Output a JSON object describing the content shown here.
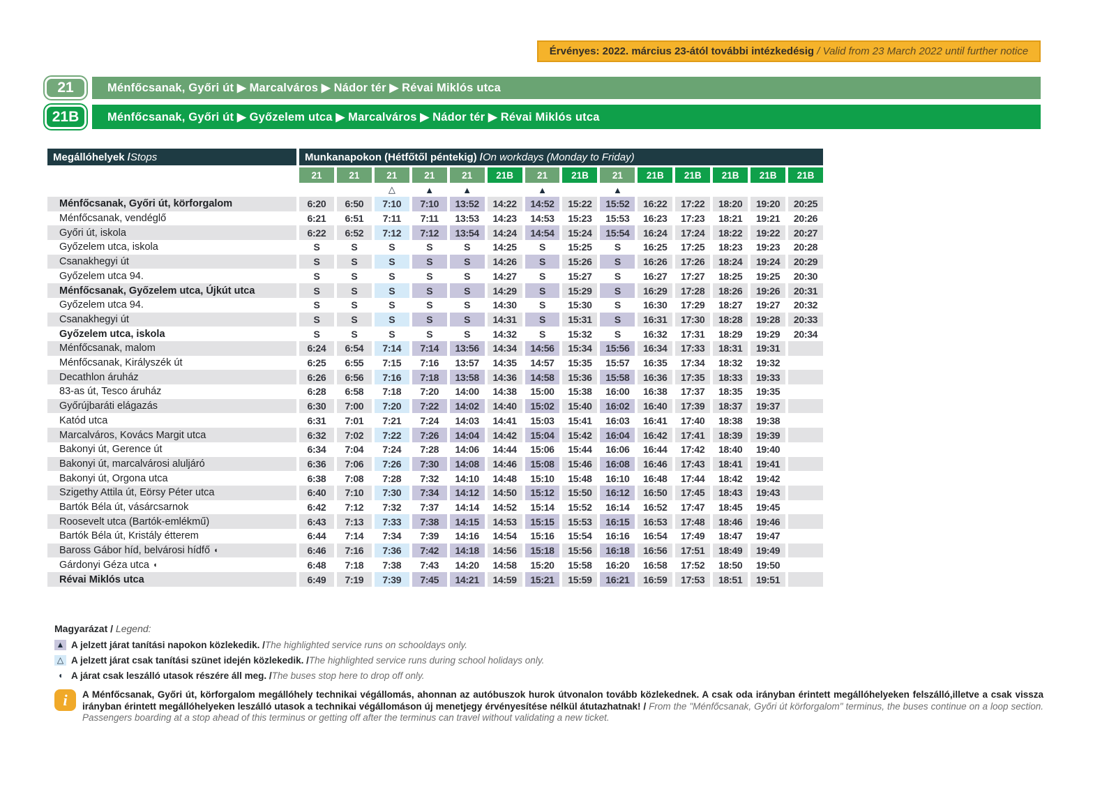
{
  "validity": {
    "hu": "Érvényes: 2022. március 23-ától további intézkedésig",
    "en": "Valid from 23 March 2022 until further notice"
  },
  "routes": [
    {
      "badge": "21",
      "destination": "Ménfőcsanak, Győri út ▶ Marcalváros ▶ Nádor tér ▶ Révai Miklós utca"
    },
    {
      "badge": "21B",
      "destination": "Ménfőcsanak, Győri út ▶ Győzelem utca ▶ Marcalváros ▶ Nádor tér ▶ Révai Miklós utca"
    }
  ],
  "table": {
    "stops_header_hu": "Megállóhelyek /",
    "stops_header_en": " Stops",
    "days_header_hu": "Munkanapokon (Hétfőtől péntekig) /",
    "days_header_en": " On workdays (Monday to Friday)",
    "columns": [
      {
        "route": "21",
        "symbol": ""
      },
      {
        "route": "21",
        "symbol": ""
      },
      {
        "route": "21",
        "symbol": "△"
      },
      {
        "route": "21",
        "symbol": "▲"
      },
      {
        "route": "21",
        "symbol": "▲"
      },
      {
        "route": "21B",
        "symbol": ""
      },
      {
        "route": "21",
        "symbol": "▲"
      },
      {
        "route": "21B",
        "symbol": ""
      },
      {
        "route": "21",
        "symbol": "▲"
      },
      {
        "route": "21B",
        "symbol": ""
      },
      {
        "route": "21B",
        "symbol": ""
      },
      {
        "route": "21B",
        "symbol": ""
      },
      {
        "route": "21B",
        "symbol": ""
      },
      {
        "route": "21B",
        "symbol": ""
      }
    ],
    "rows": [
      {
        "stop": "Ménfőcsanak, Győri út, körforgalom",
        "bold": true,
        "dropoff": false,
        "times": [
          "6:20",
          "6:50",
          "7:10",
          "7:10",
          "13:52",
          "14:22",
          "14:52",
          "15:22",
          "15:52",
          "16:22",
          "17:22",
          "18:20",
          "19:20",
          "20:25"
        ]
      },
      {
        "stop": "Ménfőcsanak, vendéglő",
        "bold": false,
        "dropoff": false,
        "times": [
          "6:21",
          "6:51",
          "7:11",
          "7:11",
          "13:53",
          "14:23",
          "14:53",
          "15:23",
          "15:53",
          "16:23",
          "17:23",
          "18:21",
          "19:21",
          "20:26"
        ]
      },
      {
        "stop": "Győri út, iskola",
        "bold": false,
        "dropoff": false,
        "times": [
          "6:22",
          "6:52",
          "7:12",
          "7:12",
          "13:54",
          "14:24",
          "14:54",
          "15:24",
          "15:54",
          "16:24",
          "17:24",
          "18:22",
          "19:22",
          "20:27"
        ]
      },
      {
        "stop": "Győzelem utca, iskola",
        "bold": false,
        "dropoff": false,
        "times": [
          "S",
          "S",
          "S",
          "S",
          "S",
          "14:25",
          "S",
          "15:25",
          "S",
          "16:25",
          "17:25",
          "18:23",
          "19:23",
          "20:28"
        ]
      },
      {
        "stop": "Csanakhegyi út",
        "bold": false,
        "dropoff": false,
        "times": [
          "S",
          "S",
          "S",
          "S",
          "S",
          "14:26",
          "S",
          "15:26",
          "S",
          "16:26",
          "17:26",
          "18:24",
          "19:24",
          "20:29"
        ]
      },
      {
        "stop": "Győzelem utca 94.",
        "bold": false,
        "dropoff": false,
        "times": [
          "S",
          "S",
          "S",
          "S",
          "S",
          "14:27",
          "S",
          "15:27",
          "S",
          "16:27",
          "17:27",
          "18:25",
          "19:25",
          "20:30"
        ]
      },
      {
        "stop": "Ménfőcsanak, Győzelem utca, Újkút utca",
        "bold": true,
        "dropoff": false,
        "times": [
          "S",
          "S",
          "S",
          "S",
          "S",
          "14:29",
          "S",
          "15:29",
          "S",
          "16:29",
          "17:28",
          "18:26",
          "19:26",
          "20:31"
        ]
      },
      {
        "stop": "Győzelem utca 94.",
        "bold": false,
        "dropoff": false,
        "times": [
          "S",
          "S",
          "S",
          "S",
          "S",
          "14:30",
          "S",
          "15:30",
          "S",
          "16:30",
          "17:29",
          "18:27",
          "19:27",
          "20:32"
        ]
      },
      {
        "stop": "Csanakhegyi út",
        "bold": false,
        "dropoff": false,
        "times": [
          "S",
          "S",
          "S",
          "S",
          "S",
          "14:31",
          "S",
          "15:31",
          "S",
          "16:31",
          "17:30",
          "18:28",
          "19:28",
          "20:33"
        ]
      },
      {
        "stop": "Győzelem utca, iskola",
        "bold": true,
        "dropoff": false,
        "times": [
          "S",
          "S",
          "S",
          "S",
          "S",
          "14:32",
          "S",
          "15:32",
          "S",
          "16:32",
          "17:31",
          "18:29",
          "19:29",
          "20:34"
        ]
      },
      {
        "stop": "Ménfőcsanak, malom",
        "bold": false,
        "dropoff": false,
        "times": [
          "6:24",
          "6:54",
          "7:14",
          "7:14",
          "13:56",
          "14:34",
          "14:56",
          "15:34",
          "15:56",
          "16:34",
          "17:33",
          "18:31",
          "19:31",
          ""
        ]
      },
      {
        "stop": "Ménfőcsanak, Királyszék út",
        "bold": false,
        "dropoff": false,
        "times": [
          "6:25",
          "6:55",
          "7:15",
          "7:16",
          "13:57",
          "14:35",
          "14:57",
          "15:35",
          "15:57",
          "16:35",
          "17:34",
          "18:32",
          "19:32",
          ""
        ]
      },
      {
        "stop": "Decathlon áruház",
        "bold": false,
        "dropoff": false,
        "times": [
          "6:26",
          "6:56",
          "7:16",
          "7:18",
          "13:58",
          "14:36",
          "14:58",
          "15:36",
          "15:58",
          "16:36",
          "17:35",
          "18:33",
          "19:33",
          ""
        ]
      },
      {
        "stop": "83-as út, Tesco áruház",
        "bold": false,
        "dropoff": false,
        "times": [
          "6:28",
          "6:58",
          "7:18",
          "7:20",
          "14:00",
          "14:38",
          "15:00",
          "15:38",
          "16:00",
          "16:38",
          "17:37",
          "18:35",
          "19:35",
          ""
        ]
      },
      {
        "stop": "Győrújbaráti elágazás",
        "bold": false,
        "dropoff": false,
        "times": [
          "6:30",
          "7:00",
          "7:20",
          "7:22",
          "14:02",
          "14:40",
          "15:02",
          "15:40",
          "16:02",
          "16:40",
          "17:39",
          "18:37",
          "19:37",
          ""
        ]
      },
      {
        "stop": "Katód utca",
        "bold": false,
        "dropoff": false,
        "times": [
          "6:31",
          "7:01",
          "7:21",
          "7:24",
          "14:03",
          "14:41",
          "15:03",
          "15:41",
          "16:03",
          "16:41",
          "17:40",
          "18:38",
          "19:38",
          ""
        ]
      },
      {
        "stop": "Marcalváros, Kovács Margit utca",
        "bold": false,
        "dropoff": false,
        "times": [
          "6:32",
          "7:02",
          "7:22",
          "7:26",
          "14:04",
          "14:42",
          "15:04",
          "15:42",
          "16:04",
          "16:42",
          "17:41",
          "18:39",
          "19:39",
          ""
        ]
      },
      {
        "stop": "Bakonyi út, Gerence út",
        "bold": false,
        "dropoff": false,
        "times": [
          "6:34",
          "7:04",
          "7:24",
          "7:28",
          "14:06",
          "14:44",
          "15:06",
          "15:44",
          "16:06",
          "16:44",
          "17:42",
          "18:40",
          "19:40",
          ""
        ]
      },
      {
        "stop": "Bakonyi út, marcalvárosi aluljáró",
        "bold": false,
        "dropoff": false,
        "times": [
          "6:36",
          "7:06",
          "7:26",
          "7:30",
          "14:08",
          "14:46",
          "15:08",
          "15:46",
          "16:08",
          "16:46",
          "17:43",
          "18:41",
          "19:41",
          ""
        ]
      },
      {
        "stop": "Bakonyi út, Orgona utca",
        "bold": false,
        "dropoff": false,
        "times": [
          "6:38",
          "7:08",
          "7:28",
          "7:32",
          "14:10",
          "14:48",
          "15:10",
          "15:48",
          "16:10",
          "16:48",
          "17:44",
          "18:42",
          "19:42",
          ""
        ]
      },
      {
        "stop": "Szigethy Attila út, Eörsy Péter utca",
        "bold": false,
        "dropoff": false,
        "times": [
          "6:40",
          "7:10",
          "7:30",
          "7:34",
          "14:12",
          "14:50",
          "15:12",
          "15:50",
          "16:12",
          "16:50",
          "17:45",
          "18:43",
          "19:43",
          ""
        ]
      },
      {
        "stop": "Bartók Béla út, vásárcsarnok",
        "bold": false,
        "dropoff": false,
        "times": [
          "6:42",
          "7:12",
          "7:32",
          "7:37",
          "14:14",
          "14:52",
          "15:14",
          "15:52",
          "16:14",
          "16:52",
          "17:47",
          "18:45",
          "19:45",
          ""
        ]
      },
      {
        "stop": "Roosevelt utca (Bartók-emlékmű)",
        "bold": false,
        "dropoff": false,
        "times": [
          "6:43",
          "7:13",
          "7:33",
          "7:38",
          "14:15",
          "14:53",
          "15:15",
          "15:53",
          "16:15",
          "16:53",
          "17:48",
          "18:46",
          "19:46",
          ""
        ]
      },
      {
        "stop": "Bartók Béla út, Kristály étterem",
        "bold": false,
        "dropoff": false,
        "times": [
          "6:44",
          "7:14",
          "7:34",
          "7:39",
          "14:16",
          "14:54",
          "15:16",
          "15:54",
          "16:16",
          "16:54",
          "17:49",
          "18:47",
          "19:47",
          ""
        ]
      },
      {
        "stop": "Baross Gábor híd, belvárosi hídfő",
        "bold": false,
        "dropoff": true,
        "times": [
          "6:46",
          "7:16",
          "7:36",
          "7:42",
          "14:18",
          "14:56",
          "15:18",
          "15:56",
          "16:18",
          "16:56",
          "17:51",
          "18:49",
          "19:49",
          ""
        ]
      },
      {
        "stop": "Gárdonyi Géza utca",
        "bold": false,
        "dropoff": true,
        "times": [
          "6:48",
          "7:18",
          "7:38",
          "7:43",
          "14:20",
          "14:58",
          "15:20",
          "15:58",
          "16:20",
          "16:58",
          "17:52",
          "18:50",
          "19:50",
          ""
        ]
      },
      {
        "stop": "Révai Miklós utca",
        "bold": true,
        "dropoff": false,
        "times": [
          "6:49",
          "7:19",
          "7:39",
          "7:45",
          "14:21",
          "14:59",
          "15:21",
          "15:59",
          "16:21",
          "16:59",
          "17:53",
          "18:51",
          "19:51",
          ""
        ]
      }
    ]
  },
  "legend": {
    "title_hu": "Magyarázat /",
    "title_en": " Legend:",
    "items": [
      {
        "symbol": "▲",
        "swatch": "lav",
        "hu": "A jelzett járat tanítási napokon közlekedik. /",
        "en": " The highlighted service runs on schooldays only."
      },
      {
        "symbol": "△",
        "swatch": "blue",
        "hu": "A jelzett járat csak tanítási szünet idején közlekedik. /",
        "en": " The highlighted service runs during school holidays only."
      },
      {
        "symbol": "◖",
        "swatch": "none",
        "hu": "A járat csak leszálló utasok részére áll meg. /",
        "en": " The buses stop here to drop off only."
      }
    ]
  },
  "info": {
    "icon": "i",
    "hu": "A Ménfőcsanak, Győri út, körforgalom megállóhely technikai végállomás, ahonnan az autóbuszok hurok útvonalon tovább közlekednek. A csak oda irányban érintett megállóhelyeken felszálló,illetve a csak vissza irányban érintett megállóhelyeken leszálló utasok a technikai végállomáson új menetjegy érvényesítése nélkül átutazhatnak! /",
    "en": " From the \"Ménfőcsanak, Győri út körforgalom\" terminus, the buses continue on a loop section. Passengers boarding at a stop ahead of this terminus or getting off after the terminus can travel without validating a new ticket."
  },
  "colors": {
    "green_light": "#6CA474",
    "green_dark": "#0FA04A",
    "header_dark": "#1E3B43",
    "banner_yellow": "#F5B32B",
    "highlight_lavender": "#C8C6DD",
    "highlight_blue": "#D5EAF8",
    "stripe_gray": "#E2E2E4",
    "drop_off_symbol": "◖",
    "schoolday_symbol": "▲",
    "holiday_symbol": "△"
  }
}
